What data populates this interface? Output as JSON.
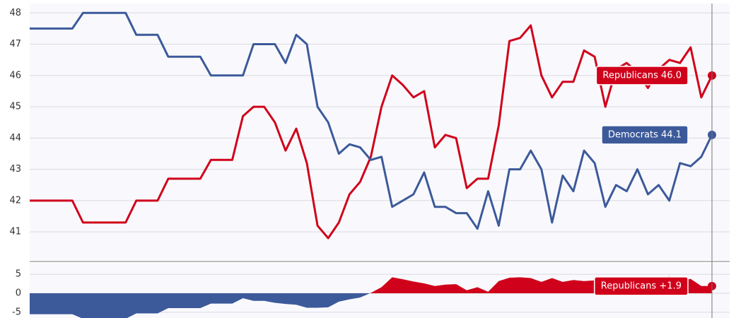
{
  "chart_data": [
    {
      "type": "line",
      "categories": [
        null,
        null,
        null,
        null,
        null,
        null,
        null,
        null,
        null,
        null,
        null,
        null,
        null,
        null,
        null,
        null,
        null,
        null,
        null,
        null,
        null,
        null,
        null,
        null,
        null,
        null,
        null,
        null,
        null,
        null,
        null,
        null,
        null,
        null,
        null,
        null,
        null,
        null,
        null,
        null,
        null,
        null,
        null,
        null,
        null,
        null,
        null,
        null,
        null,
        null,
        null,
        null,
        null,
        null,
        null,
        null,
        null,
        null,
        null,
        null,
        null,
        null,
        null,
        null,
        null
      ],
      "series": [
        {
          "name": "Republicans",
          "color": "#d0021b",
          "end_label": "Republicans 46.0",
          "values": [
            42,
            42,
            42,
            42,
            42,
            41.3,
            41.3,
            41.3,
            41.3,
            41.3,
            42,
            42,
            42,
            42.7,
            42.7,
            42.7,
            42.7,
            43.3,
            43.3,
            43.3,
            44.7,
            45,
            45,
            44.5,
            43.6,
            44.3,
            43.2,
            41.2,
            40.8,
            41.3,
            42.2,
            42.6,
            43.4,
            45,
            46,
            45.7,
            45.3,
            45.5,
            43.7,
            44.1,
            44,
            42.4,
            42.7,
            42.7,
            44.4,
            47.1,
            47.2,
            47.6,
            46,
            45.3,
            45.8,
            45.8,
            46.8,
            46.6,
            45,
            46.2,
            46.4,
            46.1,
            45.6,
            46.2,
            46.5,
            46.4,
            46.9,
            45.3,
            46
          ]
        },
        {
          "name": "Democrats",
          "color": "#3c5a9a",
          "end_label": "Democrats 44.1",
          "values": [
            47.5,
            47.5,
            47.5,
            47.5,
            47.5,
            48,
            48,
            48,
            48,
            48,
            47.3,
            47.3,
            47.3,
            46.6,
            46.6,
            46.6,
            46.6,
            46,
            46,
            46,
            46,
            47,
            47,
            47,
            46.4,
            47.3,
            47,
            45,
            44.5,
            43.5,
            43.8,
            43.7,
            43.3,
            43.4,
            41.8,
            42,
            42.2,
            42.9,
            41.8,
            41.8,
            41.6,
            41.6,
            41.1,
            42.3,
            41.2,
            43,
            43,
            43.6,
            43,
            41.3,
            42.8,
            42.3,
            43.6,
            43.2,
            41.8,
            42.5,
            42.3,
            43,
            42.2,
            42.5,
            42,
            43.2,
            43.1,
            43.4,
            44.1
          ]
        }
      ],
      "ylim": [
        40.1,
        48.3
      ],
      "yticks": [
        41,
        42,
        43,
        44,
        45,
        46,
        47,
        48
      ],
      "grid": true
    },
    {
      "type": "area",
      "categories": [
        null,
        null,
        null,
        null,
        null,
        null,
        null,
        null,
        null,
        null,
        null,
        null,
        null,
        null,
        null,
        null,
        null,
        null,
        null,
        null,
        null,
        null,
        null,
        null,
        null,
        null,
        null,
        null,
        null,
        null,
        null,
        null,
        null,
        null,
        null,
        null,
        null,
        null,
        null,
        null,
        null,
        null,
        null,
        null,
        null,
        null,
        null,
        null,
        null,
        null,
        null,
        null,
        null,
        null,
        null,
        null,
        null,
        null,
        null,
        null,
        null,
        null,
        null,
        null,
        null
      ],
      "series": [
        {
          "name": "Republicans",
          "color": "#d0021b",
          "negative_color": "#3c5a9a",
          "end_label": "Republicans +1.9",
          "values": [
            -5.5,
            -5.5,
            -5.5,
            -5.5,
            -5.5,
            -6.7,
            -6.7,
            -6.7,
            -6.7,
            -6.7,
            -5.3,
            -5.3,
            -5.3,
            -3.9,
            -3.9,
            -3.9,
            -3.9,
            -2.7,
            -2.7,
            -2.7,
            -1.3,
            -2,
            -2,
            -2.5,
            -2.8,
            -3,
            -3.8,
            -3.8,
            -3.7,
            -2.2,
            -1.6,
            -1.1,
            0.1,
            1.6,
            4.2,
            3.7,
            3.1,
            2.6,
            1.9,
            2.3,
            2.4,
            0.8,
            1.6,
            0.4,
            3.2,
            4.1,
            4.2,
            4,
            3,
            4,
            3,
            3.5,
            3.2,
            3.4,
            3.2,
            3.7,
            4.1,
            3.1,
            3.4,
            3.7,
            4.5,
            3.2,
            3.8,
            1.9,
            1.9
          ]
        }
      ],
      "ylim": [
        -6.5,
        8
      ],
      "yticks": [
        -5,
        0,
        5
      ],
      "grid": true
    }
  ]
}
